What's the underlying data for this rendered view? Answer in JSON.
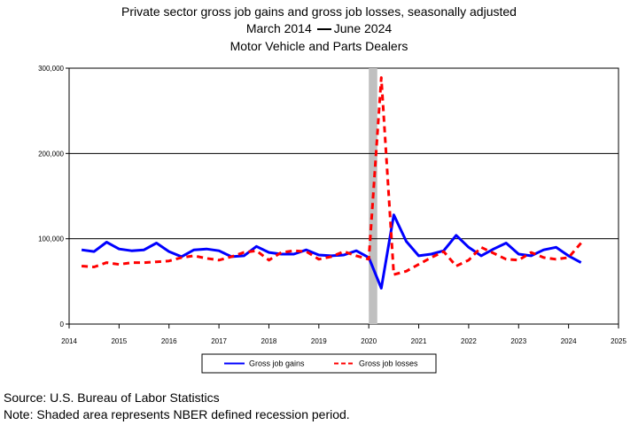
{
  "title": "Private sector gross job gains and gross job losses, seasonally adjusted",
  "subtitle_start": "March 2014",
  "subtitle_end": "June 2024",
  "series_title": "Motor Vehicle and Parts Dealers",
  "source": "Source: U.S. Bureau of Labor Statistics",
  "note": "Note: Shaded area represents NBER defined recession period.",
  "colors": {
    "gains": "#0000ff",
    "losses": "#ff0000",
    "recession": "#c0c0c0"
  },
  "chart_data": {
    "type": "line",
    "x_ticks": [
      "2014",
      "2015",
      "2016",
      "2017",
      "2018",
      "2019",
      "2020",
      "2021",
      "2022",
      "2023",
      "2024",
      "2025"
    ],
    "y_ticks": [
      "0",
      "100,000",
      "200,000",
      "300,000"
    ],
    "xlim": [
      2014,
      2025
    ],
    "ylim": [
      0,
      300000
    ],
    "grid": "horizontal",
    "legend_position": "bottom",
    "recession": [
      2020.0,
      2020.17
    ],
    "x": [
      2014.25,
      2014.5,
      2014.75,
      2015.0,
      2015.25,
      2015.5,
      2015.75,
      2016.0,
      2016.25,
      2016.5,
      2016.75,
      2017.0,
      2017.25,
      2017.5,
      2017.75,
      2018.0,
      2018.25,
      2018.5,
      2018.75,
      2019.0,
      2019.25,
      2019.5,
      2019.75,
      2020.0,
      2020.25,
      2020.5,
      2020.75,
      2021.0,
      2021.25,
      2021.5,
      2021.75,
      2022.0,
      2022.25,
      2022.5,
      2022.75,
      2023.0,
      2023.25,
      2023.5,
      2023.75,
      2024.0,
      2024.25
    ],
    "series": [
      {
        "name": "Gross job gains",
        "values": [
          87000,
          85000,
          96000,
          88000,
          86000,
          87000,
          95000,
          85000,
          79000,
          87000,
          88000,
          86000,
          79000,
          80000,
          91000,
          84000,
          82000,
          82000,
          87000,
          81000,
          80000,
          81000,
          86000,
          78000,
          42000,
          128000,
          97000,
          80000,
          82000,
          86000,
          104000,
          90000,
          80000,
          88000,
          95000,
          82000,
          80000,
          87000,
          90000,
          80000,
          72000
        ]
      },
      {
        "name": "Gross job losses",
        "values": [
          68000,
          67000,
          72000,
          70000,
          72000,
          72000,
          73000,
          74000,
          78000,
          80000,
          77000,
          75000,
          79000,
          84000,
          86000,
          75000,
          84000,
          86000,
          85000,
          76000,
          79000,
          85000,
          80000,
          76000,
          289000,
          58000,
          62000,
          70000,
          78000,
          85000,
          68000,
          75000,
          90000,
          83000,
          76000,
          75000,
          84000,
          78000,
          76000,
          78000,
          95000
        ]
      }
    ]
  }
}
